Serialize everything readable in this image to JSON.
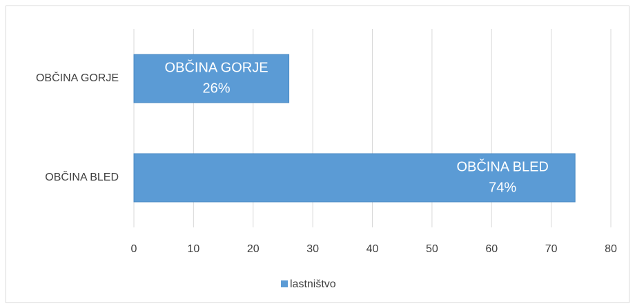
{
  "chart_data": {
    "type": "bar",
    "orientation": "horizontal",
    "categories": [
      "OBČINA GORJE",
      "OBČINA BLED"
    ],
    "series": [
      {
        "name": "lastništvo",
        "color": "#5b9bd5",
        "values": [
          26,
          74
        ],
        "value_labels": [
          "26%",
          "74%"
        ]
      }
    ],
    "xlim": [
      0,
      80
    ],
    "xticks": [
      0,
      10,
      20,
      30,
      40,
      50,
      60,
      70,
      80
    ],
    "grid": true,
    "legend": "bottom"
  }
}
